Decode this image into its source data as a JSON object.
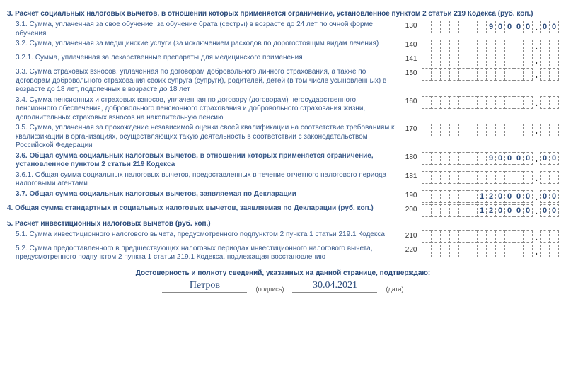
{
  "section3": {
    "title": "3. Расчет социальных налоговых вычетов, в отношении которых применяется ограничение, установленное пунктом 2 статьи 219 Кодекса (руб. коп.)"
  },
  "section4": {
    "title": "4. Общая сумма стандартных и социальных налоговых вычетов, заявляемая по Декларации (руб. коп.)"
  },
  "section5": {
    "title": "5. Расчет инвестиционных налоговых вычетов (руб. коп.)"
  },
  "rows": [
    {
      "label": "3.1. Сумма, уплаченная за свое обучение, за обучение брата (сестры) в возрасте до 24 лет по очной форме обучения",
      "code": "130",
      "int": [
        "",
        "",
        "",
        "",
        "",
        "",
        "",
        "9",
        "0",
        "0",
        "0",
        "0"
      ],
      "frac": [
        "0",
        "0"
      ],
      "bold": false,
      "indent": 1
    },
    {
      "label": "3.2. Сумма, уплаченная за медицинские услуги (за исключением расходов по дорогостоящим видам лечения)",
      "code": "140",
      "int": [
        "",
        "",
        "",
        "",
        "",
        "",
        "",
        "",
        "",
        "",
        "",
        ""
      ],
      "frac": [
        "",
        ""
      ],
      "bold": false,
      "indent": 1
    },
    {
      "label": "3.2.1. Сумма, уплаченная за лекарственные препараты для медицинского применения",
      "code": "141",
      "int": [
        "",
        "",
        "",
        "",
        "",
        "",
        "",
        "",
        "",
        "",
        "",
        ""
      ],
      "frac": [
        "",
        ""
      ],
      "bold": false,
      "indent": 1
    },
    {
      "label": "3.3. Сумма страховых взносов, уплаченная по договорам добровольного личного страхования, а также по договорам добровольного страхования своих супруга (супруги), родителей, детей (в том числе усыновленных) в возрасте до 18 лет, подопечных в возрасте до 18 лет",
      "code": "150",
      "int": [
        "",
        "",
        "",
        "",
        "",
        "",
        "",
        "",
        "",
        "",
        "",
        ""
      ],
      "frac": [
        "",
        ""
      ],
      "bold": false,
      "indent": 1
    },
    {
      "label": "3.4. Сумма пенсионных и страховых взносов, уплаченная по договору (договорам) негосударственного пенсионного обеспечения, добровольного пенсионного страхования и добровольного страхования жизни, дополнительных страховых взносов на накопительную пенсию",
      "code": "160",
      "int": [
        "",
        "",
        "",
        "",
        "",
        "",
        "",
        "",
        "",
        "",
        "",
        ""
      ],
      "frac": [
        "",
        ""
      ],
      "bold": false,
      "indent": 1
    },
    {
      "label": "3.5. Сумма, уплаченная за прохождение независимой оценки своей квалификации на соответствие требованиям к квалификации в организациях, осуществляющих такую деятельность в соответствии с законодательством Российской Федерации",
      "code": "170",
      "int": [
        "",
        "",
        "",
        "",
        "",
        "",
        "",
        "",
        "",
        "",
        "",
        ""
      ],
      "frac": [
        "",
        ""
      ],
      "bold": false,
      "indent": 1
    },
    {
      "label": "3.6. Общая сумма социальных налоговых вычетов, в отношении которых применяется ограничение, установленное пунктом 2 статьи 219 Кодекса",
      "code": "180",
      "int": [
        "",
        "",
        "",
        "",
        "",
        "",
        "",
        "9",
        "0",
        "0",
        "0",
        "0"
      ],
      "frac": [
        "0",
        "0"
      ],
      "bold": true,
      "indent": 1
    },
    {
      "label": "3.6.1. Общая сумма социальных налоговых вычетов, предоставленных в течение отчетного налогового периода налоговыми агентами",
      "code": "181",
      "int": [
        "",
        "",
        "",
        "",
        "",
        "",
        "",
        "",
        "",
        "",
        "",
        ""
      ],
      "frac": [
        "",
        ""
      ],
      "bold": false,
      "indent": 1
    },
    {
      "label": "3.7. Общая сумма социальных налоговых вычетов, заявляемая по Декларации",
      "code": "190",
      "int": [
        "",
        "",
        "",
        "",
        "",
        "",
        "1",
        "2",
        "0",
        "0",
        "0",
        "0"
      ],
      "frac": [
        "0",
        "0"
      ],
      "bold": true,
      "indent": 1
    },
    {
      "label": "",
      "code": "200",
      "int": [
        "",
        "",
        "",
        "",
        "",
        "",
        "1",
        "2",
        "0",
        "0",
        "0",
        "0"
      ],
      "frac": [
        "0",
        "0"
      ],
      "bold": false,
      "indent": 0,
      "section4row": true
    },
    {
      "label": "5.1. Сумма инвестиционного налогового вычета, предусмотренного подпунктом 2 пункта 1 статьи 219.1 Кодекса",
      "code": "210",
      "int": [
        "",
        "",
        "",
        "",
        "",
        "",
        "",
        "",
        "",
        "",
        "",
        ""
      ],
      "frac": [
        "",
        ""
      ],
      "bold": false,
      "indent": 1
    },
    {
      "label": "5.2. Сумма предоставленного в предшествующих налоговых периодах инвестиционного налогового вычета, предусмотренного подпунктом 2 пункта 1 статьи 219.1 Кодекса, подлежащая восстановлению",
      "code": "220",
      "int": [
        "",
        "",
        "",
        "",
        "",
        "",
        "",
        "",
        "",
        "",
        "",
        ""
      ],
      "frac": [
        "",
        ""
      ],
      "bold": false,
      "indent": 1
    }
  ],
  "signature": {
    "title": "Достоверность и полноту сведений, указанных на данной странице, подтверждаю:",
    "name": "Петров",
    "name_label": "(подпись)",
    "date": "30.04.2021",
    "date_label": "(дата)"
  },
  "style": {
    "int_cells": 12,
    "frac_cells": 2,
    "cell_border_color": "#888888",
    "text_color": "#3a5a8a"
  }
}
